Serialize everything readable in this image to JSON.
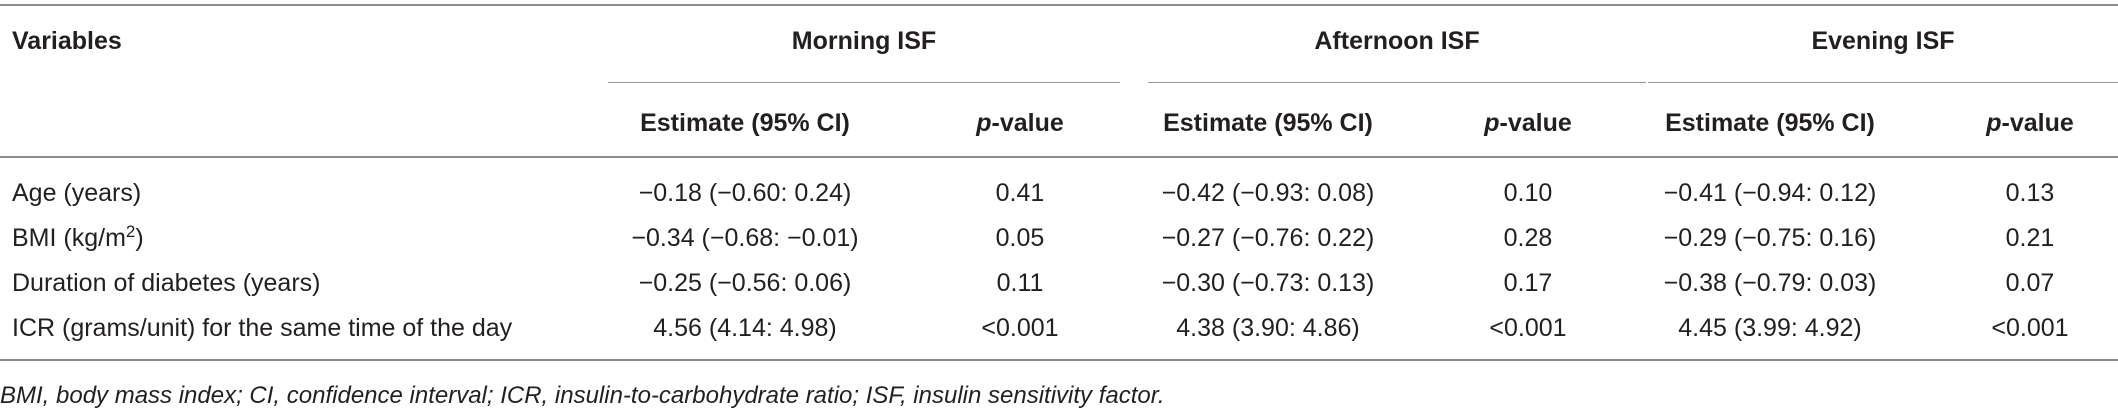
{
  "table": {
    "header": {
      "variables": "Variables",
      "groups": [
        "Morning ISF",
        "Afternoon ISF",
        "Evening ISF"
      ],
      "estimate": "Estimate (95% CI)",
      "p_letter": "p",
      "p_rest": "-value"
    },
    "rows": [
      {
        "label": "Age (years)",
        "sup": "",
        "label_tail": "",
        "cells": [
          "−0.18 (−0.60: 0.24)",
          "0.41",
          "−0.42 (−0.93: 0.08)",
          "0.10",
          "−0.41 (−0.94: 0.12)",
          "0.13"
        ]
      },
      {
        "label": "BMI (kg/m",
        "sup": "2",
        "label_tail": ")",
        "cells": [
          "−0.34 (−0.68: −0.01)",
          "0.05",
          "−0.27 (−0.76: 0.22)",
          "0.28",
          "−0.29 (−0.75: 0.16)",
          "0.21"
        ]
      },
      {
        "label": "Duration of diabetes (years)",
        "sup": "",
        "label_tail": "",
        "cells": [
          "−0.25 (−0.56: 0.06)",
          "0.11",
          "−0.30 (−0.73: 0.13)",
          "0.17",
          "−0.38 (−0.79: 0.03)",
          "0.07"
        ]
      },
      {
        "label": "ICR (grams/unit) for the same time of the day",
        "sup": "",
        "label_tail": "",
        "cells": [
          "4.56 (4.14: 4.98)",
          "<0.001",
          "4.38 (3.90: 4.86)",
          "<0.001",
          "4.45 (3.99: 4.92)",
          "<0.001"
        ]
      }
    ],
    "footnote": "BMI, body mass index; CI, confidence interval; ICR, insulin-to-carbohydrate ratio; ISF, insulin sensitivity factor."
  }
}
